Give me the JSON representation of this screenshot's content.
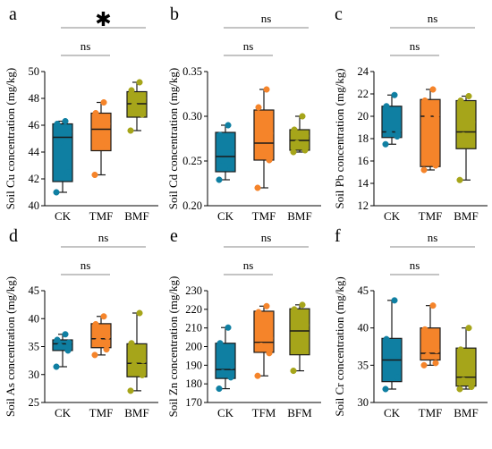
{
  "colors": {
    "CK": "#0f7fa2",
    "TMF": "#f5842a",
    "BMF": "#a6a51a",
    "outline": "#1a1a1a",
    "bracket": "#8a8a8a"
  },
  "chart_data": [
    {
      "type": "box",
      "panel_label": "a",
      "ylabel": "Soil Cu concentration (mg/kg)",
      "ylim": [
        40,
        50
      ],
      "yticks": [
        40,
        42,
        44,
        46,
        48,
        50
      ],
      "categories": [
        "CK",
        "TMF",
        "BMF"
      ],
      "boxes": [
        {
          "whisker_low": 41.0,
          "q1": 41.8,
          "median": 45.1,
          "q3": 46.1,
          "whisker_high": 46.3,
          "points": [
            41.0,
            42.5,
            44.7,
            45.5,
            46.1,
            46.3
          ]
        },
        {
          "whisker_low": 42.3,
          "q1": 44.1,
          "median": 45.7,
          "q3": 46.9,
          "whisker_high": 47.7,
          "points": [
            42.3,
            44.6,
            45.2,
            46.1,
            46.9,
            47.7
          ]
        },
        {
          "whisker_low": 45.6,
          "q1": 46.6,
          "median": 47.6,
          "q3": 48.5,
          "whisker_high": 49.2,
          "points": [
            45.6,
            46.8,
            47.5,
            48.0,
            48.6,
            49.2
          ]
        }
      ],
      "significance": [
        {
          "from": 0,
          "to": 2,
          "label": "✱"
        },
        {
          "from": 0,
          "to": 1,
          "label": "ns"
        }
      ]
    },
    {
      "type": "box",
      "panel_label": "b",
      "ylabel": "Soil Cd concentration (mg/kg)",
      "ylim": [
        0.2,
        0.35
      ],
      "yticks": [
        0.2,
        0.25,
        0.3,
        0.35
      ],
      "categories": [
        "CK",
        "TMF",
        "BMF"
      ],
      "boxes": [
        {
          "whisker_low": 0.229,
          "q1": 0.238,
          "median": 0.255,
          "q3": 0.282,
          "whisker_high": 0.29,
          "points": [
            0.229,
            0.242,
            0.25,
            0.262,
            0.279,
            0.29
          ]
        },
        {
          "whisker_low": 0.22,
          "q1": 0.251,
          "median": 0.27,
          "q3": 0.307,
          "whisker_high": 0.33,
          "points": [
            0.22,
            0.251,
            0.262,
            0.281,
            0.31,
            0.33
          ]
        },
        {
          "whisker_low": 0.26,
          "q1": 0.262,
          "median": 0.273,
          "q3": 0.285,
          "whisker_high": 0.3,
          "points": [
            0.26,
            0.262,
            0.27,
            0.278,
            0.285,
            0.3
          ]
        }
      ],
      "significance": [
        {
          "from": 0,
          "to": 2,
          "label": "ns"
        },
        {
          "from": 0,
          "to": 1,
          "label": "ns"
        }
      ]
    },
    {
      "type": "box",
      "panel_label": "c",
      "ylabel": "Soil Pb concentration (mg/kg)",
      "ylim": [
        12,
        24
      ],
      "yticks": [
        12,
        14,
        16,
        18,
        20,
        22,
        24
      ],
      "categories": [
        "CK",
        "TMF",
        "BMF"
      ],
      "boxes": [
        {
          "whisker_low": 17.5,
          "q1": 18.1,
          "median": 18.6,
          "q3": 20.9,
          "whisker_high": 21.9,
          "points": [
            17.5,
            18.2,
            18.5,
            18.7,
            20.9,
            21.9
          ]
        },
        {
          "whisker_low": 15.2,
          "q1": 15.5,
          "median": 20.0,
          "q3": 21.5,
          "whisker_high": 22.4,
          "points": [
            15.2,
            15.6,
            20.0,
            20.1,
            21.4,
            22.4
          ]
        },
        {
          "whisker_low": 14.3,
          "q1": 17.1,
          "median": 18.6,
          "q3": 21.4,
          "whisker_high": 21.8,
          "points": [
            14.3,
            17.9,
            18.3,
            19.5,
            21.4,
            21.8
          ]
        }
      ],
      "significance": [
        {
          "from": 0,
          "to": 2,
          "label": "ns"
        },
        {
          "from": 0,
          "to": 1,
          "label": "ns"
        }
      ]
    },
    {
      "type": "box",
      "panel_label": "d",
      "ylabel": "Soil As concentration (mg/kg)",
      "ylim": [
        25,
        45
      ],
      "yticks": [
        25,
        30,
        35,
        40,
        45
      ],
      "categories": [
        "CK",
        "TMF",
        "BMF"
      ],
      "boxes": [
        {
          "whisker_low": 31.4,
          "q1": 34.3,
          "median": 35.5,
          "q3": 36.2,
          "whisker_high": 37.2,
          "points": [
            31.4,
            34.3,
            35.1,
            35.7,
            36.2,
            37.2
          ]
        },
        {
          "whisker_low": 33.5,
          "q1": 34.8,
          "median": 36.4,
          "q3": 39.1,
          "whisker_high": 40.4,
          "points": [
            33.5,
            34.5,
            36.1,
            36.8,
            39.0,
            40.4
          ]
        },
        {
          "whisker_low": 27.1,
          "q1": 29.6,
          "median": 32.0,
          "q3": 35.5,
          "whisker_high": 41.0,
          "points": [
            27.1,
            29.9,
            31.7,
            32.5,
            35.6,
            41.0
          ]
        }
      ],
      "significance": [
        {
          "from": 0,
          "to": 2,
          "label": "ns"
        },
        {
          "from": 0,
          "to": 1,
          "label": "ns"
        }
      ]
    },
    {
      "type": "box",
      "panel_label": "e",
      "ylabel": "Soil Zn concentration (mg/kg)",
      "ylim": [
        170,
        230
      ],
      "yticks": [
        170,
        180,
        190,
        200,
        210,
        220,
        230
      ],
      "categories": [
        "CK",
        "TFM",
        "BFM"
      ],
      "boxes": [
        {
          "whisker_low": 177.4,
          "q1": 182.9,
          "median": 187.7,
          "q3": 201.8,
          "whisker_high": 210.2,
          "points": [
            177.4,
            183.5,
            186.0,
            189.5,
            201.8,
            210.2
          ]
        },
        {
          "whisker_low": 184.3,
          "q1": 196.9,
          "median": 202.3,
          "q3": 219.0,
          "whisker_high": 221.7,
          "points": [
            184.3,
            196.5,
            200.5,
            204.5,
            218.5,
            221.7
          ]
        },
        {
          "whisker_low": 187.0,
          "q1": 195.6,
          "median": 208.4,
          "q3": 220.3,
          "whisker_high": 222.4,
          "points": [
            187.0,
            199.5,
            205.0,
            211.5,
            220.0,
            222.4
          ]
        }
      ],
      "significance": [
        {
          "from": 0,
          "to": 2,
          "label": "ns"
        },
        {
          "from": 0,
          "to": 1,
          "label": "ns"
        }
      ]
    },
    {
      "type": "box",
      "panel_label": "f",
      "ylabel": "Soil Cr concentration (mg/kg)",
      "ylim": [
        30,
        45
      ],
      "yticks": [
        30,
        35,
        40,
        45
      ],
      "categories": [
        "CK",
        "TMF",
        "BMF"
      ],
      "boxes": [
        {
          "whisker_low": 31.8,
          "q1": 32.8,
          "median": 35.7,
          "q3": 38.6,
          "whisker_high": 43.7,
          "points": [
            31.8,
            33.4,
            35.1,
            36.4,
            38.5,
            43.7
          ]
        },
        {
          "whisker_low": 35.0,
          "q1": 35.7,
          "median": 36.6,
          "q3": 40.0,
          "whisker_high": 43.0,
          "points": [
            35.0,
            35.3,
            36.3,
            37.0,
            39.8,
            43.0
          ]
        },
        {
          "whisker_low": 31.8,
          "q1": 32.2,
          "median": 33.4,
          "q3": 37.3,
          "whisker_high": 40.0,
          "points": [
            31.8,
            32.1,
            33.0,
            34.2,
            37.1,
            40.0
          ]
        }
      ],
      "significance": [
        {
          "from": 0,
          "to": 2,
          "label": "ns"
        },
        {
          "from": 0,
          "to": 1,
          "label": "ns"
        }
      ]
    }
  ]
}
